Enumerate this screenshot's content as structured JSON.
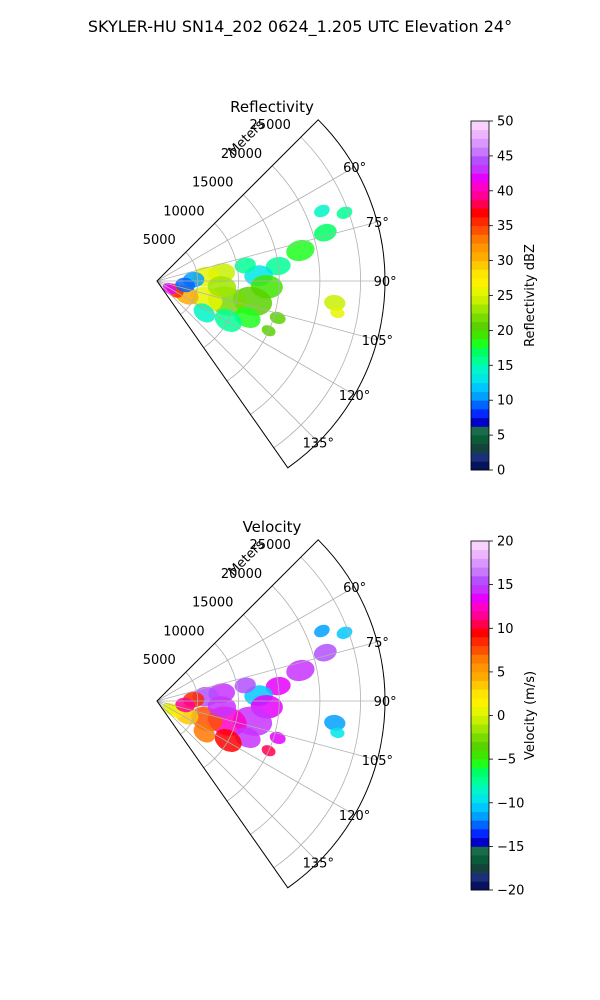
{
  "figure": {
    "suptitle": "SKYLER-HU  SN14_202  0624_1.205 UTC Elevation 24°"
  },
  "chart_data": [
    {
      "type": "heatmap",
      "subtype": "polar-sector",
      "title": "Reflectivity",
      "radial_axis_label": "Meters",
      "radial_ticks": [
        5000,
        10000,
        15000,
        20000,
        25000
      ],
      "radial_tick_labels": [
        "5000",
        "10000",
        "15000",
        "20000",
        "25000"
      ],
      "radial_range": [
        0,
        28000
      ],
      "azimuth_range_deg": [
        45,
        145
      ],
      "azimuth_ticks": [
        60,
        75,
        90,
        105,
        120,
        135
      ],
      "azimuth_tick_labels": [
        "60°",
        "75°",
        "90°",
        "105°",
        "120°",
        "135°"
      ],
      "grid": true,
      "colorbar": {
        "label": "Reflectivity dBZ",
        "range": [
          0,
          50
        ],
        "ticks": [
          0,
          5,
          10,
          15,
          20,
          25,
          30,
          35,
          40,
          45,
          50
        ],
        "tick_labels": [
          "0",
          "5",
          "10",
          "15",
          "20",
          "25",
          "30",
          "35",
          "40",
          "45",
          "50"
        ],
        "colors": [
          "#07135c",
          "#1b2f7a",
          "#15433c",
          "#0b5a3a",
          "#1a6b4a",
          "#0000c8",
          "#0028ff",
          "#0064ff",
          "#00a0ff",
          "#00c8ff",
          "#00e6e6",
          "#00f5c8",
          "#00ff96",
          "#00ff64",
          "#1eff1e",
          "#41e600",
          "#5ad200",
          "#78dc00",
          "#a0e600",
          "#c8f000",
          "#e6f500",
          "#fff000",
          "#ffe600",
          "#ffc800",
          "#ffaa00",
          "#ff9600",
          "#ff7800",
          "#ff5000",
          "#ff2800",
          "#ff0000",
          "#ff0050",
          "#ff0096",
          "#ff00c8",
          "#e600ff",
          "#c832ff",
          "#b450ff",
          "#c878ff",
          "#dc96ff",
          "#eeb4ff",
          "#f8d2ff"
        ]
      },
      "echoes": [
        {
          "az": 74,
          "r": 21500,
          "size": 1300,
          "value": 17
        },
        {
          "az": 78,
          "r": 18000,
          "size": 1600,
          "value": 18
        },
        {
          "az": 83,
          "r": 15000,
          "size": 1400,
          "value": 15
        },
        {
          "az": 87,
          "r": 12500,
          "size": 1600,
          "value": 13
        },
        {
          "az": 93,
          "r": 13500,
          "size": 1800,
          "value": 19
        },
        {
          "az": 97,
          "r": 22000,
          "size": 1200,
          "value": 24
        },
        {
          "az": 100,
          "r": 22500,
          "size": 800,
          "value": 26
        },
        {
          "az": 102,
          "r": 12000,
          "size": 2200,
          "value": 20
        },
        {
          "az": 106,
          "r": 9000,
          "size": 2200,
          "value": 22
        },
        {
          "az": 110,
          "r": 6500,
          "size": 1800,
          "value": 25
        },
        {
          "az": 115,
          "r": 4000,
          "size": 1400,
          "value": 30
        },
        {
          "az": 118,
          "r": 2500,
          "size": 1000,
          "value": 35
        },
        {
          "az": 121,
          "r": 1800,
          "size": 800,
          "value": 42
        },
        {
          "az": 112,
          "r": 12000,
          "size": 1500,
          "value": 18
        },
        {
          "az": 119,
          "r": 10000,
          "size": 1600,
          "value": 16
        },
        {
          "az": 124,
          "r": 7000,
          "size": 1300,
          "value": 14
        },
        {
          "az": 83,
          "r": 8000,
          "size": 1500,
          "value": 24
        },
        {
          "az": 85,
          "r": 6000,
          "size": 1500,
          "value": 26
        },
        {
          "az": 88,
          "r": 4500,
          "size": 1200,
          "value": 11
        },
        {
          "az": 95,
          "r": 8000,
          "size": 1600,
          "value": 23
        },
        {
          "az": 67,
          "r": 22000,
          "size": 900,
          "value": 14
        },
        {
          "az": 70,
          "r": 24500,
          "size": 900,
          "value": 15
        },
        {
          "az": 98,
          "r": 3500,
          "size": 1100,
          "value": 9
        },
        {
          "az": 107,
          "r": 15500,
          "size": 900,
          "value": 21
        },
        {
          "az": 114,
          "r": 15000,
          "size": 800,
          "value": 20
        },
        {
          "az": 80,
          "r": 11000,
          "size": 1200,
          "value": 16
        }
      ]
    },
    {
      "type": "heatmap",
      "subtype": "polar-sector",
      "title": "Velocity",
      "radial_axis_label": "Meters",
      "radial_ticks": [
        5000,
        10000,
        15000,
        20000,
        25000
      ],
      "radial_tick_labels": [
        "5000",
        "10000",
        "15000",
        "20000",
        "25000"
      ],
      "radial_range": [
        0,
        28000
      ],
      "azimuth_range_deg": [
        45,
        145
      ],
      "azimuth_ticks": [
        60,
        75,
        90,
        105,
        120,
        135
      ],
      "azimuth_tick_labels": [
        "60°",
        "75°",
        "90°",
        "105°",
        "120°",
        "135°"
      ],
      "grid": true,
      "colorbar": {
        "label": "Velocity (m/s)",
        "range": [
          -20,
          20
        ],
        "ticks": [
          -20,
          -15,
          -10,
          -5,
          0,
          5,
          10,
          15,
          20
        ],
        "tick_labels": [
          "−20",
          "−15",
          "−10",
          "−5",
          "0",
          "5",
          "10",
          "15",
          "20"
        ],
        "colors": [
          "#07135c",
          "#1b2f7a",
          "#15433c",
          "#0b5a3a",
          "#1a6b4a",
          "#0000c8",
          "#0028ff",
          "#0064ff",
          "#00a0ff",
          "#00c8ff",
          "#00e6e6",
          "#00f5c8",
          "#00ff96",
          "#00ff64",
          "#1eff1e",
          "#41e600",
          "#5ad200",
          "#78dc00",
          "#a0e600",
          "#c8f000",
          "#e6f500",
          "#fff000",
          "#ffe600",
          "#ffc800",
          "#ffaa00",
          "#ff9600",
          "#ff7800",
          "#ff5000",
          "#ff2800",
          "#ff0000",
          "#ff0050",
          "#ff0096",
          "#ff00c8",
          "#e600ff",
          "#c832ff",
          "#b450ff",
          "#c878ff",
          "#dc96ff",
          "#eeb4ff",
          "#f8d2ff"
        ]
      },
      "echoes": [
        {
          "az": 74,
          "r": 21500,
          "size": 1300,
          "value": 15
        },
        {
          "az": 78,
          "r": 18000,
          "size": 1600,
          "value": 14
        },
        {
          "az": 83,
          "r": 15000,
          "size": 1400,
          "value": 13
        },
        {
          "az": 87,
          "r": 12500,
          "size": 1600,
          "value": -11
        },
        {
          "az": 93,
          "r": 13500,
          "size": 1800,
          "value": 13
        },
        {
          "az": 97,
          "r": 22000,
          "size": 1200,
          "value": -12
        },
        {
          "az": 100,
          "r": 22500,
          "size": 800,
          "value": -10
        },
        {
          "az": 102,
          "r": 12000,
          "size": 2200,
          "value": 14
        },
        {
          "az": 106,
          "r": 9000,
          "size": 2200,
          "value": 12
        },
        {
          "az": 110,
          "r": 6500,
          "size": 1800,
          "value": 7
        },
        {
          "az": 115,
          "r": 4000,
          "size": 1400,
          "value": 3
        },
        {
          "az": 118,
          "r": 2500,
          "size": 1000,
          "value": 1
        },
        {
          "az": 121,
          "r": 1800,
          "size": 800,
          "value": 0
        },
        {
          "az": 112,
          "r": 12000,
          "size": 1500,
          "value": 14
        },
        {
          "az": 119,
          "r": 10000,
          "size": 1600,
          "value": 9
        },
        {
          "az": 124,
          "r": 7000,
          "size": 1300,
          "value": 6
        },
        {
          "az": 83,
          "r": 8000,
          "size": 1500,
          "value": 14
        },
        {
          "az": 85,
          "r": 6000,
          "size": 1500,
          "value": 15
        },
        {
          "az": 88,
          "r": 4500,
          "size": 1200,
          "value": 8
        },
        {
          "az": 95,
          "r": 8000,
          "size": 1600,
          "value": 14
        },
        {
          "az": 67,
          "r": 22000,
          "size": 900,
          "value": -12
        },
        {
          "az": 70,
          "r": 24500,
          "size": 900,
          "value": -11
        },
        {
          "az": 98,
          "r": 3500,
          "size": 1100,
          "value": 11
        },
        {
          "az": 107,
          "r": 15500,
          "size": 900,
          "value": 13
        },
        {
          "az": 114,
          "r": 15000,
          "size": 800,
          "value": 10
        },
        {
          "az": 80,
          "r": 11000,
          "size": 1200,
          "value": 15
        }
      ]
    }
  ]
}
